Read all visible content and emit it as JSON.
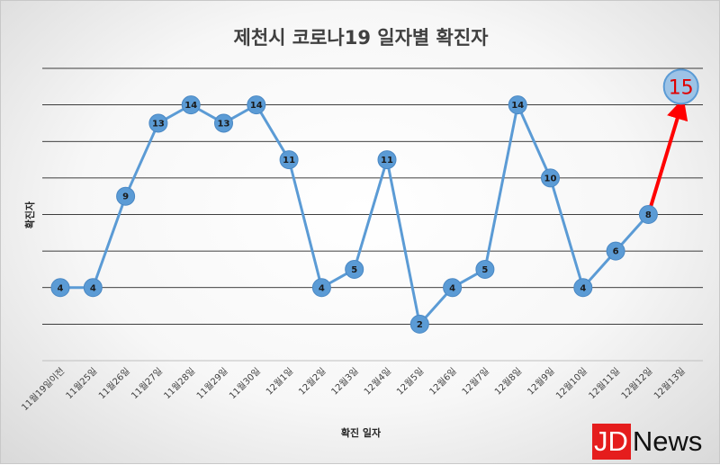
{
  "chart_data": {
    "type": "line",
    "title": "제천시 코로나19 일자별 확진자",
    "xlabel": "확진 일자",
    "ylabel": "확진자",
    "ylim": [
      0,
      16
    ],
    "categories": [
      "11월19일이전",
      "11월25일",
      "11월26일",
      "11월27일",
      "11월28일",
      "11월29일",
      "11월30일",
      "12월1일",
      "12월2일",
      "12월3일",
      "12월4일",
      "12월5일",
      "12월6일",
      "12월7일",
      "12월8일",
      "12월9일",
      "12월10일",
      "12월11일",
      "12월12일",
      "12월13일"
    ],
    "series": [
      {
        "values": [
          4,
          4,
          9,
          13,
          14,
          13,
          14,
          11,
          4,
          5,
          11,
          2,
          4,
          5,
          14,
          10,
          4,
          6,
          8,
          15
        ]
      }
    ],
    "grid": true,
    "highlight": {
      "index": 19,
      "value": 15,
      "label": "15"
    },
    "colors": {
      "line": "#5b9bd5",
      "marker": "#5b9bd5",
      "highlight_line": "#ff0000",
      "highlight_marker": "#9dc3e6",
      "highlight_text": "#e00000",
      "grid": "#000000"
    }
  },
  "logo": {
    "part1": "JD",
    "part2": "News",
    "color": "#e51d1d"
  }
}
